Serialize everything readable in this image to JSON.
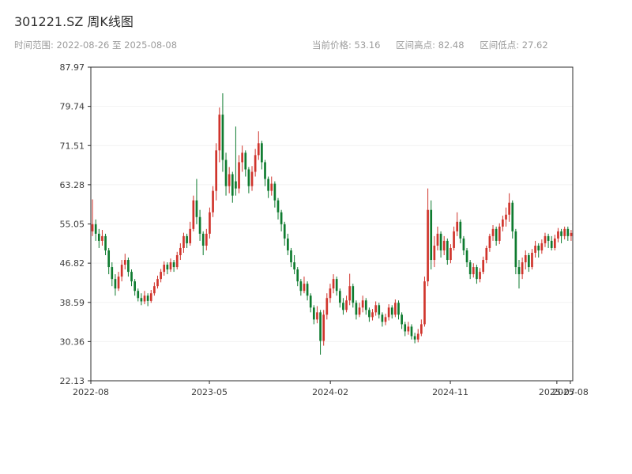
{
  "header": {
    "title": "301221.SZ 周K线图",
    "time_range": "时间范围: 2022-08-26 至 2025-08-08",
    "current_price": "当前价格: 53.16",
    "range_high": "区间高点: 82.48",
    "range_low": "区间低点: 27.62"
  },
  "colors": {
    "up": "#d0342c",
    "down": "#0e7b2f",
    "axis": "#2b2b2b",
    "grid": "#f2f2f2",
    "tick_text": "#3c3c3c"
  },
  "chart_data": {
    "type": "candlestick",
    "title": "301221.SZ 周K线图",
    "symbol": "301221.SZ",
    "interval": "weekly",
    "start_date": "2022-08-26",
    "end_date": "2025-08-08",
    "current_price": 53.16,
    "range_high": 82.48,
    "range_low": 27.62,
    "ylim": [
      22.13,
      87.97
    ],
    "y_ticks": [
      87.97,
      79.74,
      71.51,
      63.28,
      55.05,
      46.82,
      38.59,
      30.36,
      22.13
    ],
    "x_ticks": [
      {
        "label": "2022-08",
        "pos": 0.0
      },
      {
        "label": "2023-05",
        "pos": 0.246
      },
      {
        "label": "2024-02",
        "pos": 0.497
      },
      {
        "label": "2024-11",
        "pos": 0.746
      },
      {
        "label": "2025-07",
        "pos": 0.967
      },
      {
        "label": "2025-08",
        "pos": 0.995
      }
    ],
    "ohlc_format": [
      "open",
      "high",
      "low",
      "close"
    ],
    "ohlc": [
      [
        53.5,
        60.2,
        52.5,
        55.0
      ],
      [
        55.0,
        56.0,
        51.5,
        53.0
      ],
      [
        53.0,
        54.0,
        50.0,
        51.5
      ],
      [
        51.5,
        53.8,
        50.5,
        52.5
      ],
      [
        52.5,
        53.0,
        48.5,
        49.5
      ],
      [
        49.5,
        50.0,
        44.5,
        46.0
      ],
      [
        46.0,
        47.0,
        42.0,
        43.5
      ],
      [
        43.5,
        44.5,
        40.0,
        41.5
      ],
      [
        41.5,
        45.0,
        41.0,
        44.0
      ],
      [
        44.0,
        47.5,
        43.0,
        46.5
      ],
      [
        46.5,
        48.8,
        45.5,
        47.5
      ],
      [
        47.5,
        48.0,
        44.0,
        45.0
      ],
      [
        45.0,
        45.5,
        42.0,
        43.0
      ],
      [
        43.0,
        43.5,
        40.0,
        41.0
      ],
      [
        41.0,
        41.5,
        38.8,
        39.5
      ],
      [
        39.5,
        40.5,
        38.0,
        38.8
      ],
      [
        38.8,
        41.0,
        38.2,
        40.0
      ],
      [
        40.0,
        40.5,
        37.8,
        38.9
      ],
      [
        38.9,
        41.2,
        38.5,
        40.5
      ],
      [
        40.5,
        42.8,
        40.0,
        42.0
      ],
      [
        42.0,
        44.2,
        41.5,
        43.5
      ],
      [
        43.5,
        45.6,
        42.8,
        45.0
      ],
      [
        45.0,
        47.2,
        44.2,
        46.5
      ],
      [
        46.5,
        47.0,
        44.5,
        45.5
      ],
      [
        45.5,
        47.8,
        45.0,
        47.0
      ],
      [
        47.0,
        47.5,
        45.0,
        46.0
      ],
      [
        46.0,
        49.2,
        45.5,
        48.5
      ],
      [
        48.5,
        51.0,
        47.5,
        50.0
      ],
      [
        50.0,
        53.2,
        49.0,
        52.5
      ],
      [
        52.5,
        53.0,
        50.0,
        51.0
      ],
      [
        51.0,
        55.5,
        50.5,
        54.0
      ],
      [
        54.0,
        61.0,
        53.5,
        60.0
      ],
      [
        60.0,
        64.5,
        55.0,
        56.5
      ],
      [
        56.5,
        58.0,
        51.5,
        53.0
      ],
      [
        53.0,
        53.5,
        48.5,
        50.5
      ],
      [
        50.5,
        54.0,
        49.5,
        53.0
      ],
      [
        53.0,
        58.5,
        52.0,
        57.5
      ],
      [
        57.5,
        63.0,
        56.5,
        62.0
      ],
      [
        62.0,
        72.0,
        60.0,
        70.5
      ],
      [
        70.5,
        79.5,
        68.0,
        78.0
      ],
      [
        78.0,
        82.48,
        66.0,
        68.5
      ],
      [
        68.5,
        70.0,
        61.0,
        63.0
      ],
      [
        63.0,
        67.0,
        61.5,
        65.5
      ],
      [
        65.5,
        66.0,
        59.5,
        61.0
      ],
      [
        64.0,
        75.5,
        61.0,
        62.5
      ],
      [
        62.5,
        69.5,
        61.5,
        68.0
      ],
      [
        68.0,
        71.5,
        66.0,
        70.0
      ],
      [
        70.0,
        70.5,
        65.0,
        66.5
      ],
      [
        66.5,
        67.0,
        61.5,
        63.0
      ],
      [
        63.0,
        67.2,
        62.0,
        66.0
      ],
      [
        66.0,
        70.8,
        65.0,
        69.5
      ],
      [
        69.5,
        74.5,
        68.5,
        72.0
      ],
      [
        72.0,
        72.5,
        66.5,
        68.0
      ],
      [
        68.0,
        68.5,
        63.0,
        64.5
      ],
      [
        64.5,
        65.0,
        60.5,
        62.0
      ],
      [
        62.0,
        65.0,
        61.0,
        63.5
      ],
      [
        63.5,
        64.0,
        58.5,
        60.0
      ],
      [
        60.0,
        60.5,
        56.0,
        57.5
      ],
      [
        57.5,
        58.0,
        53.5,
        55.0
      ],
      [
        55.0,
        55.5,
        50.5,
        52.0
      ],
      [
        52.0,
        53.0,
        48.5,
        49.5
      ],
      [
        49.5,
        50.0,
        46.0,
        47.0
      ],
      [
        47.0,
        48.5,
        44.5,
        45.5
      ],
      [
        45.5,
        46.0,
        42.0,
        43.0
      ],
      [
        43.0,
        43.5,
        40.0,
        41.0
      ],
      [
        41.0,
        44.0,
        40.5,
        42.5
      ],
      [
        42.5,
        43.0,
        39.0,
        40.0
      ],
      [
        40.0,
        40.5,
        36.5,
        37.5
      ],
      [
        37.5,
        38.0,
        34.0,
        35.0
      ],
      [
        35.0,
        37.8,
        34.2,
        36.5
      ],
      [
        36.5,
        37.0,
        27.62,
        30.5
      ],
      [
        30.5,
        37.0,
        29.5,
        36.0
      ],
      [
        36.0,
        40.5,
        35.0,
        39.5
      ],
      [
        39.5,
        42.5,
        38.5,
        41.5
      ],
      [
        41.5,
        44.5,
        40.5,
        43.5
      ],
      [
        43.5,
        44.0,
        40.0,
        41.0
      ],
      [
        41.0,
        41.5,
        37.5,
        38.5
      ],
      [
        38.5,
        39.5,
        36.0,
        37.0
      ],
      [
        37.0,
        40.0,
        36.5,
        39.0
      ],
      [
        39.0,
        44.6,
        38.0,
        42.0
      ],
      [
        42.0,
        42.5,
        37.5,
        38.5
      ],
      [
        38.5,
        39.0,
        35.0,
        36.0
      ],
      [
        36.0,
        38.5,
        35.5,
        37.5
      ],
      [
        37.5,
        40.0,
        36.5,
        39.0
      ],
      [
        39.0,
        39.5,
        36.0,
        37.0
      ],
      [
        37.0,
        37.5,
        34.5,
        35.5
      ],
      [
        35.5,
        37.2,
        34.8,
        36.5
      ],
      [
        36.5,
        38.8,
        35.8,
        38.0
      ],
      [
        38.0,
        38.5,
        35.2,
        36.0
      ],
      [
        36.0,
        36.5,
        33.5,
        34.5
      ],
      [
        34.5,
        36.2,
        33.8,
        35.5
      ],
      [
        35.5,
        38.2,
        34.8,
        37.5
      ],
      [
        37.5,
        38.0,
        35.2,
        36.0
      ],
      [
        36.0,
        39.2,
        35.5,
        38.5
      ],
      [
        38.5,
        39.0,
        35.0,
        36.0
      ],
      [
        36.0,
        36.5,
        33.0,
        34.0
      ],
      [
        34.0,
        34.5,
        31.5,
        32.5
      ],
      [
        32.5,
        34.5,
        31.8,
        33.5
      ],
      [
        33.5,
        34.0,
        30.8,
        31.5
      ],
      [
        31.5,
        32.2,
        30.0,
        30.8
      ],
      [
        30.8,
        33.0,
        30.2,
        32.0
      ],
      [
        32.0,
        35.0,
        31.5,
        34.0
      ],
      [
        34.0,
        44.0,
        33.5,
        43.0
      ],
      [
        43.0,
        62.5,
        42.0,
        58.0
      ],
      [
        58.0,
        60.0,
        45.5,
        47.5
      ],
      [
        47.5,
        52.5,
        46.0,
        50.5
      ],
      [
        50.5,
        54.5,
        49.5,
        53.0
      ],
      [
        53.0,
        53.5,
        48.0,
        49.5
      ],
      [
        49.5,
        52.5,
        48.5,
        51.5
      ],
      [
        51.5,
        52.0,
        46.5,
        47.5
      ],
      [
        47.5,
        50.8,
        46.8,
        50.0
      ],
      [
        50.0,
        54.5,
        49.5,
        53.5
      ],
      [
        53.5,
        57.5,
        52.5,
        55.5
      ],
      [
        55.5,
        56.0,
        51.0,
        52.0
      ],
      [
        52.0,
        52.5,
        48.5,
        49.5
      ],
      [
        49.5,
        50.0,
        46.0,
        47.0
      ],
      [
        47.0,
        47.5,
        43.5,
        44.5
      ],
      [
        44.5,
        46.8,
        43.8,
        46.0
      ],
      [
        46.0,
        46.5,
        42.5,
        43.5
      ],
      [
        43.5,
        45.8,
        42.8,
        45.0
      ],
      [
        45.0,
        48.2,
        44.5,
        47.5
      ],
      [
        47.5,
        50.5,
        46.8,
        50.0
      ],
      [
        50.0,
        53.0,
        49.2,
        52.5
      ],
      [
        52.5,
        54.8,
        51.5,
        54.0
      ],
      [
        54.0,
        54.5,
        50.5,
        51.5
      ],
      [
        51.5,
        55.2,
        50.8,
        54.5
      ],
      [
        54.5,
        56.8,
        53.5,
        56.0
      ],
      [
        56.0,
        58.5,
        54.5,
        57.0
      ],
      [
        57.0,
        61.5,
        55.5,
        59.5
      ],
      [
        59.5,
        60.0,
        52.0,
        53.5
      ],
      [
        53.5,
        54.0,
        44.5,
        46.0
      ],
      [
        46.0,
        47.5,
        41.5,
        44.5
      ],
      [
        44.5,
        48.0,
        43.5,
        47.0
      ],
      [
        47.0,
        49.5,
        45.5,
        48.5
      ],
      [
        48.5,
        49.0,
        45.0,
        46.0
      ],
      [
        46.0,
        49.8,
        45.5,
        49.0
      ],
      [
        49.0,
        51.5,
        48.0,
        50.5
      ],
      [
        50.5,
        51.0,
        48.0,
        49.5
      ],
      [
        49.5,
        51.8,
        48.8,
        51.0
      ],
      [
        51.0,
        53.2,
        50.2,
        52.5
      ],
      [
        52.5,
        53.0,
        50.0,
        51.5
      ],
      [
        51.5,
        52.5,
        49.5,
        50.0
      ],
      [
        50.0,
        52.8,
        49.5,
        52.0
      ],
      [
        52.0,
        54.2,
        51.2,
        53.5
      ],
      [
        53.5,
        54.0,
        51.0,
        52.5
      ],
      [
        52.5,
        54.5,
        51.8,
        54.0
      ],
      [
        54.0,
        54.5,
        51.5,
        52.5
      ],
      [
        52.5,
        53.8,
        51.5,
        53.16
      ]
    ]
  }
}
